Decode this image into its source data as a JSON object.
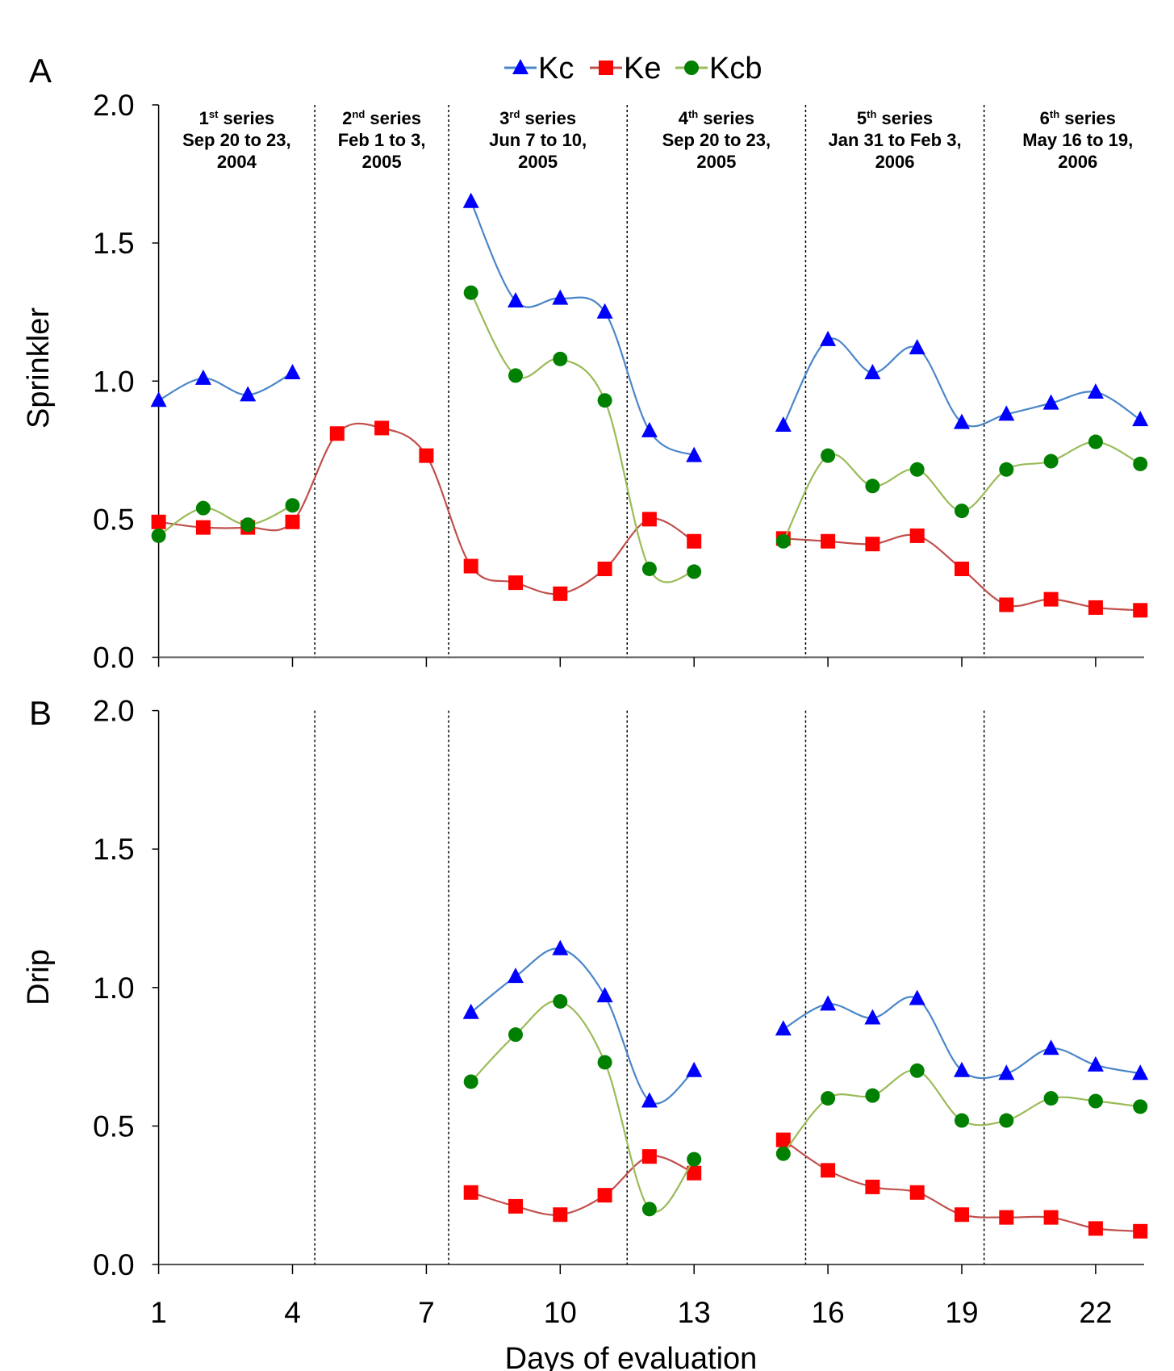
{
  "chart_data": [
    {
      "type": "line",
      "panel_label": "A",
      "ylabel": "Sprinkler",
      "xlabel": "",
      "ylim": [
        0,
        2.0
      ],
      "xlim": [
        1,
        23
      ],
      "yticks": [
        "0.0",
        "0.5",
        "1.0",
        "1.5",
        "2.0"
      ],
      "xticks": [
        1,
        4,
        7,
        10,
        13,
        16,
        19,
        22
      ],
      "grid": false,
      "legend": "top-center",
      "series_dividers": [
        4.5,
        7.5,
        11.5,
        15.5,
        19.5
      ],
      "series_headers": [
        {
          "num": "1",
          "sup": "st",
          "word": " series",
          "line2": "Sep 20 to 23,",
          "line3": "2004"
        },
        {
          "num": "2",
          "sup": "nd",
          "word": " series",
          "line2": "Feb 1 to 3,",
          "line3": "2005"
        },
        {
          "num": "3",
          "sup": "rd",
          "word": " series",
          "line2": "Jun 7 to 10,",
          "line3": "2005"
        },
        {
          "num": "4",
          "sup": "th",
          "word": " series",
          "line2": "Sep 20 to 23,",
          "line3": "2005"
        },
        {
          "num": "5",
          "sup": "th",
          "word": " series",
          "line2": "Jan 31 to Feb 3,",
          "line3": "2006"
        },
        {
          "num": "6",
          "sup": "th",
          "word": " series",
          "line2": "May 16 to 19,",
          "line3": "2006"
        }
      ],
      "x": [
        1,
        2,
        3,
        4,
        5,
        6,
        7,
        8,
        9,
        10,
        11,
        12,
        13,
        14,
        15,
        16,
        17,
        18,
        19,
        20,
        21,
        22,
        23
      ],
      "series": [
        {
          "name": "Kc",
          "marker": "triangle",
          "color": "#0000ff",
          "line_color": "#4a86c8",
          "values": [
            0.93,
            1.01,
            0.95,
            1.03,
            null,
            null,
            null,
            1.65,
            1.29,
            1.3,
            1.25,
            0.82,
            0.73,
            null,
            0.84,
            1.15,
            1.03,
            1.12,
            0.85,
            0.88,
            0.92,
            0.96,
            0.86
          ]
        },
        {
          "name": "Ke",
          "marker": "square",
          "color": "#ff0000",
          "line_color": "#c0504d",
          "values": [
            0.49,
            0.47,
            0.47,
            0.49,
            0.81,
            0.83,
            0.73,
            0.33,
            0.27,
            0.23,
            0.32,
            0.5,
            0.42,
            null,
            0.43,
            0.42,
            0.41,
            0.44,
            0.32,
            0.19,
            0.21,
            0.18,
            0.17
          ]
        },
        {
          "name": "Kcb",
          "marker": "circle",
          "color": "#008000",
          "line_color": "#9bbb59",
          "values": [
            0.44,
            0.54,
            0.48,
            0.55,
            null,
            null,
            null,
            1.32,
            1.02,
            1.08,
            0.93,
            0.32,
            0.31,
            null,
            0.42,
            0.73,
            0.62,
            0.68,
            0.53,
            0.68,
            0.71,
            0.78,
            0.7
          ]
        }
      ]
    },
    {
      "type": "line",
      "panel_label": "B",
      "ylabel": "Drip",
      "xlabel": "Days of evaluation",
      "ylim": [
        0,
        2.0
      ],
      "xlim": [
        1,
        23
      ],
      "yticks": [
        "0.0",
        "0.5",
        "1.0",
        "1.5",
        "2.0"
      ],
      "xticks": [
        1,
        4,
        7,
        10,
        13,
        16,
        19,
        22
      ],
      "grid": false,
      "series_dividers": [
        4.5,
        7.5,
        11.5,
        15.5,
        19.5
      ],
      "x": [
        1,
        2,
        3,
        4,
        5,
        6,
        7,
        8,
        9,
        10,
        11,
        12,
        13,
        14,
        15,
        16,
        17,
        18,
        19,
        20,
        21,
        22,
        23
      ],
      "series": [
        {
          "name": "Kc",
          "marker": "triangle",
          "color": "#0000ff",
          "line_color": "#4a86c8",
          "values": [
            null,
            null,
            null,
            null,
            null,
            null,
            null,
            0.91,
            1.04,
            1.14,
            0.97,
            0.59,
            0.7,
            null,
            0.85,
            0.94,
            0.89,
            0.96,
            0.7,
            0.69,
            0.78,
            0.72,
            0.69
          ]
        },
        {
          "name": "Ke",
          "marker": "square",
          "color": "#ff0000",
          "line_color": "#c0504d",
          "values": [
            null,
            null,
            null,
            null,
            null,
            null,
            null,
            0.26,
            0.21,
            0.18,
            0.25,
            0.39,
            0.33,
            null,
            0.45,
            0.34,
            0.28,
            0.26,
            0.18,
            0.17,
            0.17,
            0.13,
            0.12
          ]
        },
        {
          "name": "Kcb",
          "marker": "circle",
          "color": "#008000",
          "line_color": "#9bbb59",
          "values": [
            null,
            null,
            null,
            null,
            null,
            null,
            null,
            0.66,
            0.83,
            0.95,
            0.73,
            0.2,
            0.38,
            null,
            0.4,
            0.6,
            0.61,
            0.7,
            0.52,
            0.52,
            0.6,
            0.59,
            0.57
          ]
        }
      ]
    }
  ]
}
